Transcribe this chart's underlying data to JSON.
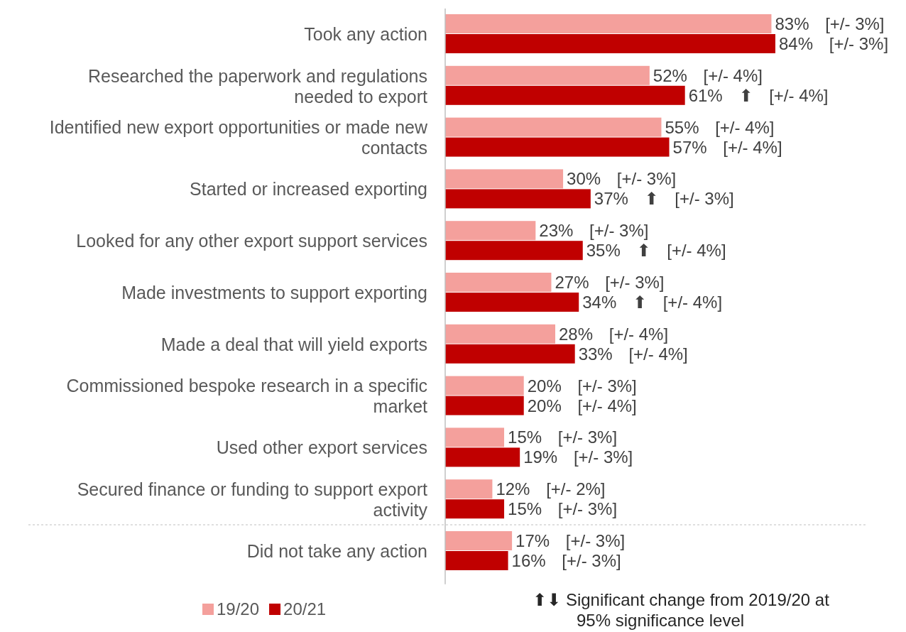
{
  "chart_data": {
    "type": "bar",
    "orientation": "horizontal",
    "legend": "bottom left",
    "categories": [
      "Took any action",
      "Researched the paperwork and regulations needed to export",
      "Identified new export opportunities or made new contacts",
      "Started or increased exporting",
      "Looked for any other export support services",
      "Made investments to support exporting",
      "Made a deal that will yield exports",
      "Commissioned bespoke research in a specific market",
      "Used other export services",
      "Secured finance or funding to support export activity",
      "Did not take any action"
    ],
    "series": [
      {
        "name": "19/20",
        "color": "#f4a09c",
        "values": [
          83,
          52,
          55,
          30,
          23,
          27,
          28,
          20,
          15,
          12,
          17
        ],
        "value_labels": [
          "83% [+/- 3%]",
          "52% [+/- 4%]",
          "55% [+/- 4%]",
          "30% [+/- 3%]",
          "23% [+/- 3%]",
          "27% [+/- 3%]",
          "28% [+/- 4%]",
          "20% [+/- 3%]",
          "15% [+/- 3%]",
          "12% [+/- 2%]",
          "17% [+/- 3%]"
        ]
      },
      {
        "name": "20/21",
        "color": "#c00000",
        "values": [
          84,
          61,
          57,
          37,
          35,
          34,
          33,
          20,
          19,
          15,
          16
        ],
        "value_labels": [
          "84% [+/- 3%]",
          "61% ⬆ [+/- 4%]",
          "57% [+/- 4%]",
          "37% ⬆ [+/- 3%]",
          "35% ⬆ [+/- 4%]",
          "34% ⬆ [+/- 4%]",
          "33% [+/- 4%]",
          "20% [+/- 4%]",
          "19% [+/- 3%]",
          "15% [+/- 3%]",
          "16% [+/- 3%]"
        ]
      }
    ],
    "annotations": [
      "⬆⬇ Significant change from 2019/20 at 95% significance level"
    ]
  }
}
